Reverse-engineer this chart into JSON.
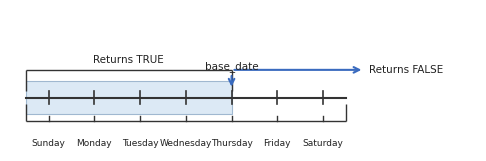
{
  "days": [
    "Sunday",
    "Monday",
    "Tuesday",
    "Wednesday",
    "Thursday",
    "Friday",
    "Saturday"
  ],
  "day_positions": [
    0,
    1,
    2,
    3,
    4,
    5,
    6
  ],
  "base_date_index": 4,
  "true_label": "Returns TRUE",
  "false_label": "Returns FALSE",
  "base_date_label": "base_date",
  "shaded_color": "#dce9f5",
  "shaded_edge_color": "#a0b8d0",
  "arrow_color": "#3a6bbf",
  "text_color": "#222222",
  "bracket_color": "#333333",
  "timeline_color": "#333333",
  "background_color": "#ffffff",
  "fig_width": 4.86,
  "fig_height": 1.61,
  "dpi": 100
}
